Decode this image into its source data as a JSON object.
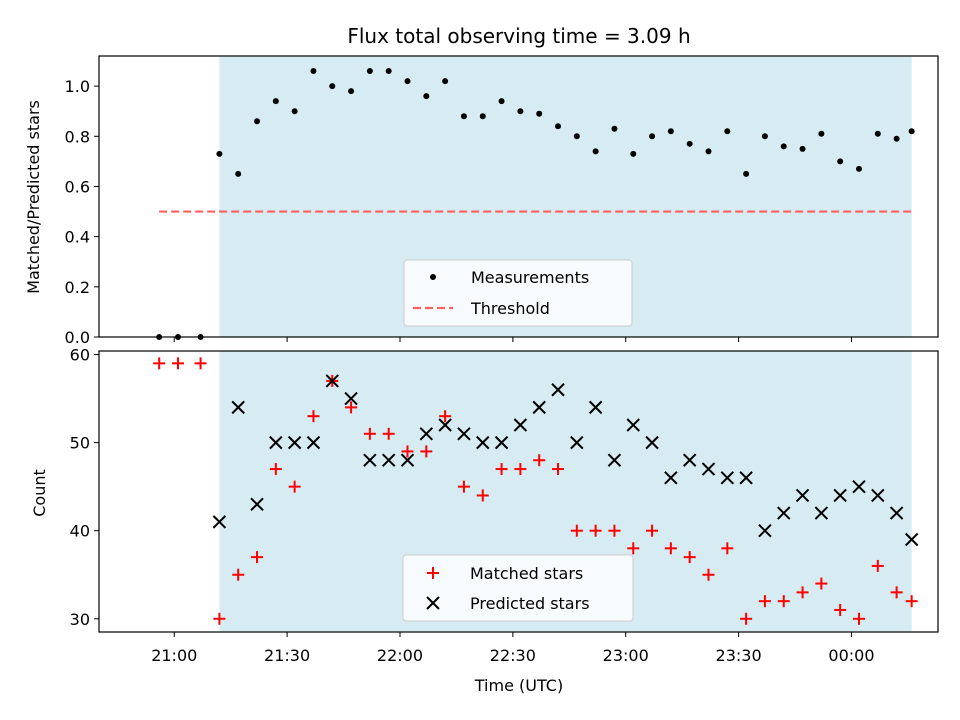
{
  "figure": {
    "title": "Flux total observing time = 3.09 h",
    "xlabel": "Time (UTC)"
  },
  "colors": {
    "span": "#add8e6",
    "measurement": "#000000",
    "threshold": "#ff5f5f",
    "matched": "#ff0000",
    "predicted": "#000000"
  },
  "chart_data": [
    {
      "type": "scatter",
      "ylabel": "Matched/Predicted stars",
      "xlim": [
        "20:40",
        "00:23"
      ],
      "ylim": [
        0,
        1.12
      ],
      "x_ticks": [
        "21:00",
        "21:30",
        "22:00",
        "22:30",
        "23:00",
        "23:30",
        "00:00"
      ],
      "y_ticks": [
        "0.0",
        "0.2",
        "0.4",
        "0.6",
        "0.8",
        "1.0"
      ],
      "shaded_span": [
        "21:12",
        "00:16"
      ],
      "threshold": {
        "name": "Threshold",
        "y": 0.5,
        "x_range": [
          "20:56",
          "00:16"
        ]
      },
      "series": [
        {
          "name": "Measurements",
          "marker": "dot",
          "x": [
            "20:56",
            "21:01",
            "21:07",
            "21:12",
            "21:17",
            "21:22",
            "21:27",
            "21:32",
            "21:37",
            "21:42",
            "21:47",
            "21:52",
            "21:57",
            "22:02",
            "22:07",
            "22:12",
            "22:17",
            "22:22",
            "22:27",
            "22:32",
            "22:37",
            "22:42",
            "22:47",
            "22:52",
            "22:57",
            "23:02",
            "23:07",
            "23:12",
            "23:17",
            "23:22",
            "23:27",
            "23:32",
            "23:37",
            "23:42",
            "23:47",
            "23:52",
            "23:57",
            "00:02",
            "00:07",
            "00:12",
            "00:16"
          ],
          "y": [
            0.0,
            0.0,
            0.0,
            0.73,
            0.65,
            0.86,
            0.94,
            0.9,
            1.06,
            1.0,
            0.98,
            1.06,
            1.06,
            1.02,
            0.96,
            1.02,
            0.88,
            0.88,
            0.94,
            0.9,
            0.89,
            0.84,
            0.8,
            0.74,
            0.83,
            0.73,
            0.8,
            0.82,
            0.77,
            0.74,
            0.82,
            0.65,
            0.8,
            0.76,
            0.75,
            0.81,
            0.7,
            0.67,
            0.81,
            0.79,
            0.82
          ]
        }
      ],
      "legend": [
        "Measurements",
        "Threshold"
      ],
      "legend_position": "bottom-center"
    },
    {
      "type": "scatter",
      "ylabel": "Count",
      "xlim": [
        "20:40",
        "00:23"
      ],
      "ylim": [
        28.5,
        60.4
      ],
      "x_ticks": [
        "21:00",
        "21:30",
        "22:00",
        "22:30",
        "23:00",
        "23:30",
        "00:00"
      ],
      "y_ticks": [
        "30",
        "40",
        "50",
        "60"
      ],
      "shaded_span": [
        "21:12",
        "00:16"
      ],
      "series": [
        {
          "name": "Matched stars",
          "marker": "plus",
          "x": [
            "20:56",
            "21:01",
            "21:07",
            "21:12",
            "21:17",
            "21:22",
            "21:27",
            "21:32",
            "21:37",
            "21:42",
            "21:47",
            "21:52",
            "21:57",
            "22:02",
            "22:07",
            "22:12",
            "22:17",
            "22:22",
            "22:27",
            "22:32",
            "22:37",
            "22:42",
            "22:47",
            "22:52",
            "22:57",
            "23:02",
            "23:07",
            "23:12",
            "23:17",
            "23:22",
            "23:27",
            "23:32",
            "23:37",
            "23:42",
            "23:47",
            "23:52",
            "23:57",
            "00:02",
            "00:07",
            "00:12",
            "00:16"
          ],
          "y": [
            59,
            59,
            59,
            30,
            35,
            37,
            47,
            45,
            53,
            57,
            54,
            51,
            51,
            49,
            49,
            53,
            45,
            44,
            47,
            47,
            48,
            47,
            40,
            40,
            40,
            38,
            40,
            38,
            37,
            35,
            38,
            30,
            32,
            32,
            33,
            34,
            31,
            30,
            36,
            33,
            32
          ]
        },
        {
          "name": "Predicted stars",
          "marker": "x",
          "x": [
            "21:12",
            "21:17",
            "21:22",
            "21:27",
            "21:32",
            "21:37",
            "21:42",
            "21:47",
            "21:52",
            "21:57",
            "22:02",
            "22:07",
            "22:12",
            "22:17",
            "22:22",
            "22:27",
            "22:32",
            "22:37",
            "22:42",
            "22:47",
            "22:52",
            "22:57",
            "23:02",
            "23:07",
            "23:12",
            "23:17",
            "23:22",
            "23:27",
            "23:32",
            "23:37",
            "23:42",
            "23:47",
            "23:52",
            "23:57",
            "00:02",
            "00:07",
            "00:12",
            "00:16"
          ],
          "y": [
            41,
            54,
            43,
            50,
            50,
            50,
            57,
            55,
            48,
            48,
            48,
            51,
            52,
            51,
            50,
            50,
            52,
            54,
            56,
            50,
            54,
            48,
            52,
            50,
            46,
            48,
            47,
            46,
            46,
            40,
            42,
            44,
            42,
            44,
            45,
            44,
            42,
            39
          ]
        }
      ],
      "legend": [
        "Matched stars",
        "Predicted stars"
      ],
      "legend_position": "bottom-center"
    }
  ]
}
